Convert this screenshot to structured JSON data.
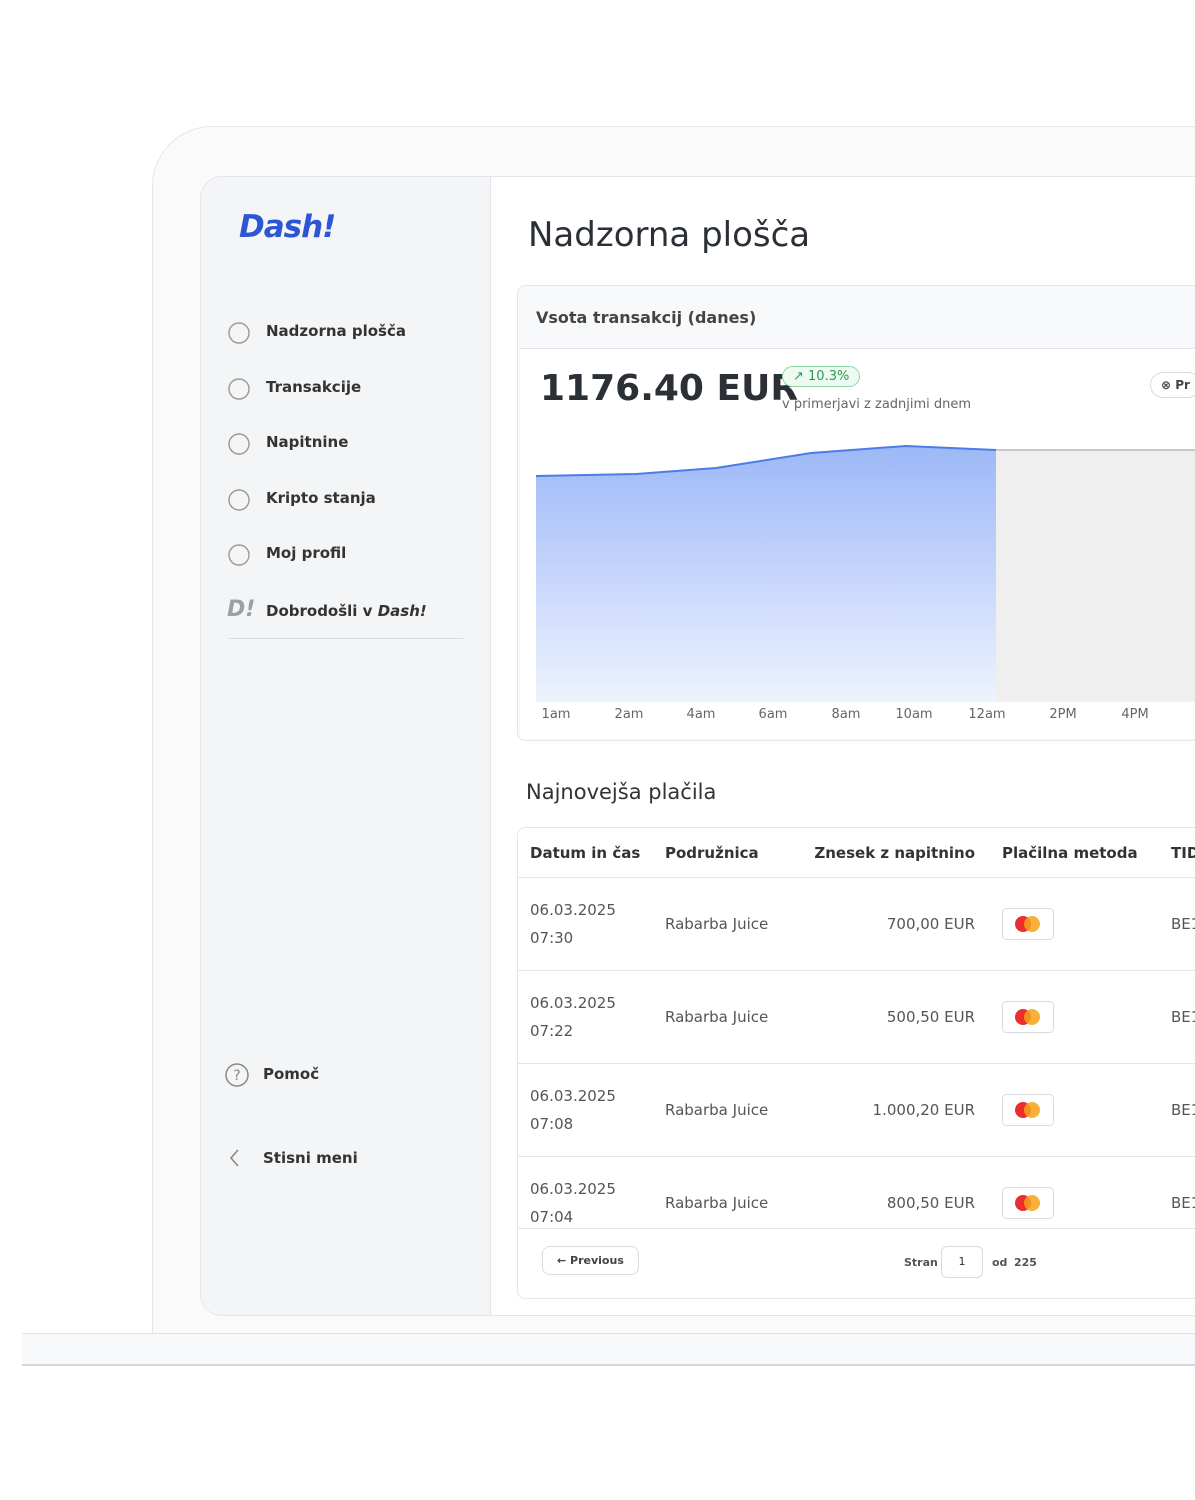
{
  "sidebar": {
    "brand": "Dash!",
    "nav": [
      "Nadzorna plošča",
      "Transakcije",
      "Napitnine",
      "Kripto stanja",
      "Moj profil"
    ],
    "welcome": {
      "text": "Dobrodošli v",
      "brand": "Dash!"
    },
    "help": "Pomoč",
    "collapse": "Stisni meni"
  },
  "main": {
    "title": "Nadzorna plošča",
    "card": {
      "title": "Vsota transakcij (danes)",
      "total": "1176.40 EUR",
      "change": "10.3%",
      "compare": "v primerjavi z zadnjimi dnem",
      "button": "Pr",
      "x_labels": [
        "1am",
        "2am",
        "4am",
        "6am",
        "8am",
        "10am",
        "12am",
        "2PM",
        "4PM"
      ]
    },
    "payments": {
      "title": "Najnovejša plačila",
      "headers": [
        "Datum in čas",
        "Podružnica",
        "Znesek z napitnino",
        "Plačilna metoda",
        "TID"
      ],
      "rows": [
        {
          "date": "06.03.2025",
          "time": "07:30",
          "branch": "Rabarba Juice",
          "amount": "700,00 EUR",
          "tid": "BE1"
        },
        {
          "date": "06.03.2025",
          "time": "07:22",
          "branch": "Rabarba Juice",
          "amount": "500,50 EUR",
          "tid": "BE1"
        },
        {
          "date": "06.03.2025",
          "time": "07:08",
          "branch": "Rabarba Juice",
          "amount": "1.000,20 EUR",
          "tid": "BE1"
        },
        {
          "date": "06.03.2025",
          "time": "07:04",
          "branch": "Rabarba Juice",
          "amount": "800,50 EUR",
          "tid": "BE1"
        }
      ],
      "pagination": {
        "previous": "Previous",
        "page_label": "Stran",
        "page": "1",
        "of": "od",
        "total": "225"
      }
    }
  }
}
